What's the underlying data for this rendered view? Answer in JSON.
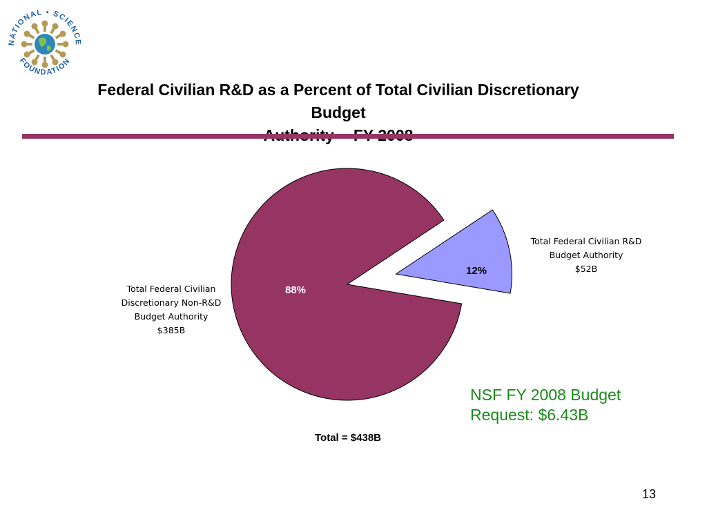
{
  "logo": {
    "icon": "nsf-logo-icon",
    "text": "NATIONAL • SCIENCE • FOUNDATION",
    "colors": {
      "ring_text": "#1c5fa5",
      "figures": "#b39a56",
      "globe": "#2f87b8"
    }
  },
  "title_line1": "Federal Civilian R&D as a Percent of Total Civilian Discretionary Budget",
  "title_line2": "Authority -- FY 2008",
  "chart_data": {
    "type": "pie",
    "title": "Federal Civilian R&D as a Percent of Total Civilian Discretionary Budget Authority -- FY 2008",
    "slices": [
      {
        "label_lines": [
          "Total Federal Civilian",
          "Discretionary Non-R&D",
          "Budget Authority",
          "$385B"
        ],
        "percent": 88,
        "percent_label": "88%",
        "value": 385,
        "value_label": "$385B",
        "color": "#963463",
        "exploded": false
      },
      {
        "label_lines": [
          "Total Federal Civilian R&D",
          "Budget Authority",
          "$52B"
        ],
        "percent": 12,
        "percent_label": "12%",
        "value": 52,
        "value_label": "$52B",
        "color": "#9999ff",
        "exploded": true
      }
    ],
    "total_label": "Total = $438B"
  },
  "note_line1": "NSF FY 2008 Budget",
  "note_line2": "Request: $6.43B",
  "page_number": "13",
  "colors": {
    "accent_bar": "#963463",
    "note_text": "#1a8a1a"
  }
}
